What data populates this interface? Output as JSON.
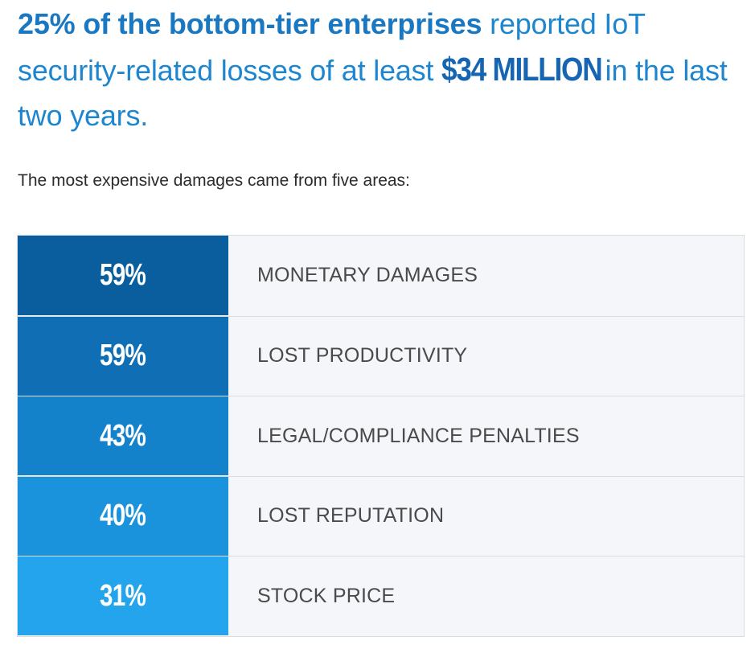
{
  "headline": {
    "bold_part": "25% of the bottom-tier enterprises",
    "part2": " reported IoT security-related losses of at least ",
    "amount": "$34 MILLION",
    "part3": " in the last two years."
  },
  "subtitle": "The most expensive damages came from five areas:",
  "colors": {
    "row_colors": [
      "#0b5e9e",
      "#0f6eb4",
      "#1482cb",
      "#1b93dc",
      "#23a4ec"
    ],
    "label_bg": "#f4f6f9",
    "headline_blue": "#1e86cf"
  },
  "chart_data": {
    "type": "table",
    "rows": [
      {
        "value": 59,
        "display": "59%",
        "label": "MONETARY DAMAGES"
      },
      {
        "value": 59,
        "display": "59%",
        "label": "LOST PRODUCTIVITY"
      },
      {
        "value": 43,
        "display": "43%",
        "label": "LEGAL/COMPLIANCE PENALTIES"
      },
      {
        "value": 40,
        "display": "40%",
        "label": "LOST REPUTATION"
      },
      {
        "value": 31,
        "display": "31%",
        "label": "STOCK PRICE"
      }
    ]
  }
}
